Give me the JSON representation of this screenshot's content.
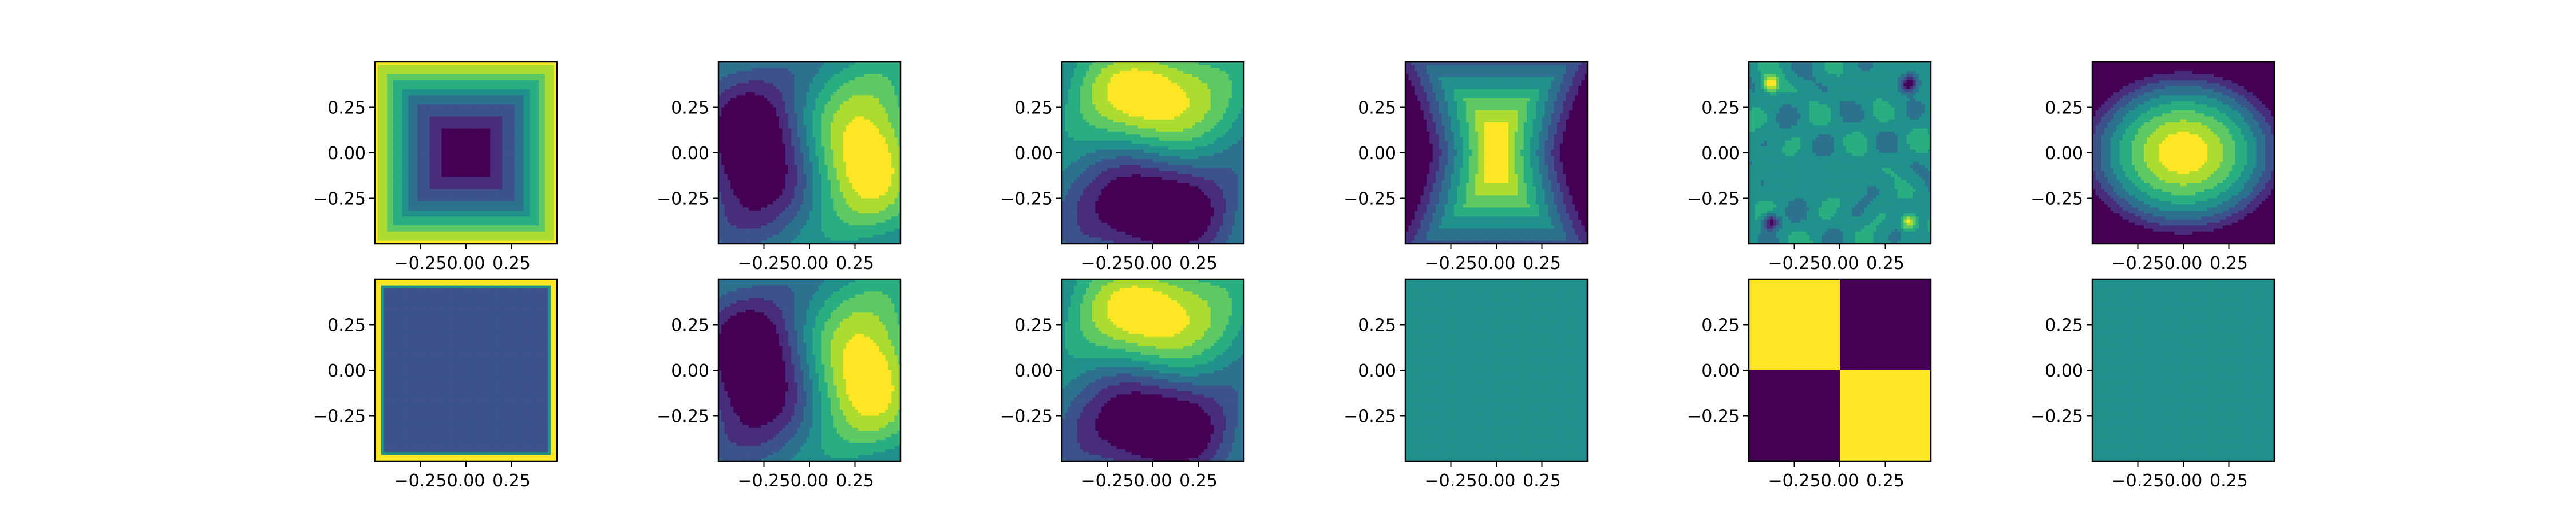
{
  "chart_data": {
    "type": "heatmap",
    "layout": {
      "rows": 2,
      "cols": 6
    },
    "colormap": [
      "#440154",
      "#472d7b",
      "#3b528b",
      "#2c728e",
      "#21918c",
      "#28ae80",
      "#5ec962",
      "#addc30",
      "#fde725"
    ],
    "axes": {
      "xlim": [
        -0.5,
        0.5
      ],
      "ylim": [
        -0.5,
        0.5
      ],
      "xticks": [
        -0.25,
        0.0,
        0.25
      ],
      "yticks": [
        -0.25,
        0.0,
        0.25
      ],
      "xtick_labels": [
        "−0.25",
        "0.00",
        "0.25"
      ],
      "ytick_labels": [
        "−0.25",
        "0.00",
        "0.25"
      ]
    },
    "panels": [
      {
        "row": 0,
        "col": 0,
        "pattern": "bowl"
      },
      {
        "row": 0,
        "col": 1,
        "pattern": "dipole-x"
      },
      {
        "row": 0,
        "col": 2,
        "pattern": "dipole-y"
      },
      {
        "row": 0,
        "col": 3,
        "pattern": "hourglass"
      },
      {
        "row": 0,
        "col": 4,
        "pattern": "noise-corners"
      },
      {
        "row": 0,
        "col": 5,
        "pattern": "dome"
      },
      {
        "row": 1,
        "col": 0,
        "pattern": "flat-frame",
        "level": 0.25
      },
      {
        "row": 1,
        "col": 1,
        "pattern": "dipole-x"
      },
      {
        "row": 1,
        "col": 2,
        "pattern": "dipole-y"
      },
      {
        "row": 1,
        "col": 3,
        "pattern": "flat",
        "level": 0.5
      },
      {
        "row": 1,
        "col": 4,
        "pattern": "checker"
      },
      {
        "row": 1,
        "col": 5,
        "pattern": "flat",
        "level": 0.5
      }
    ]
  }
}
